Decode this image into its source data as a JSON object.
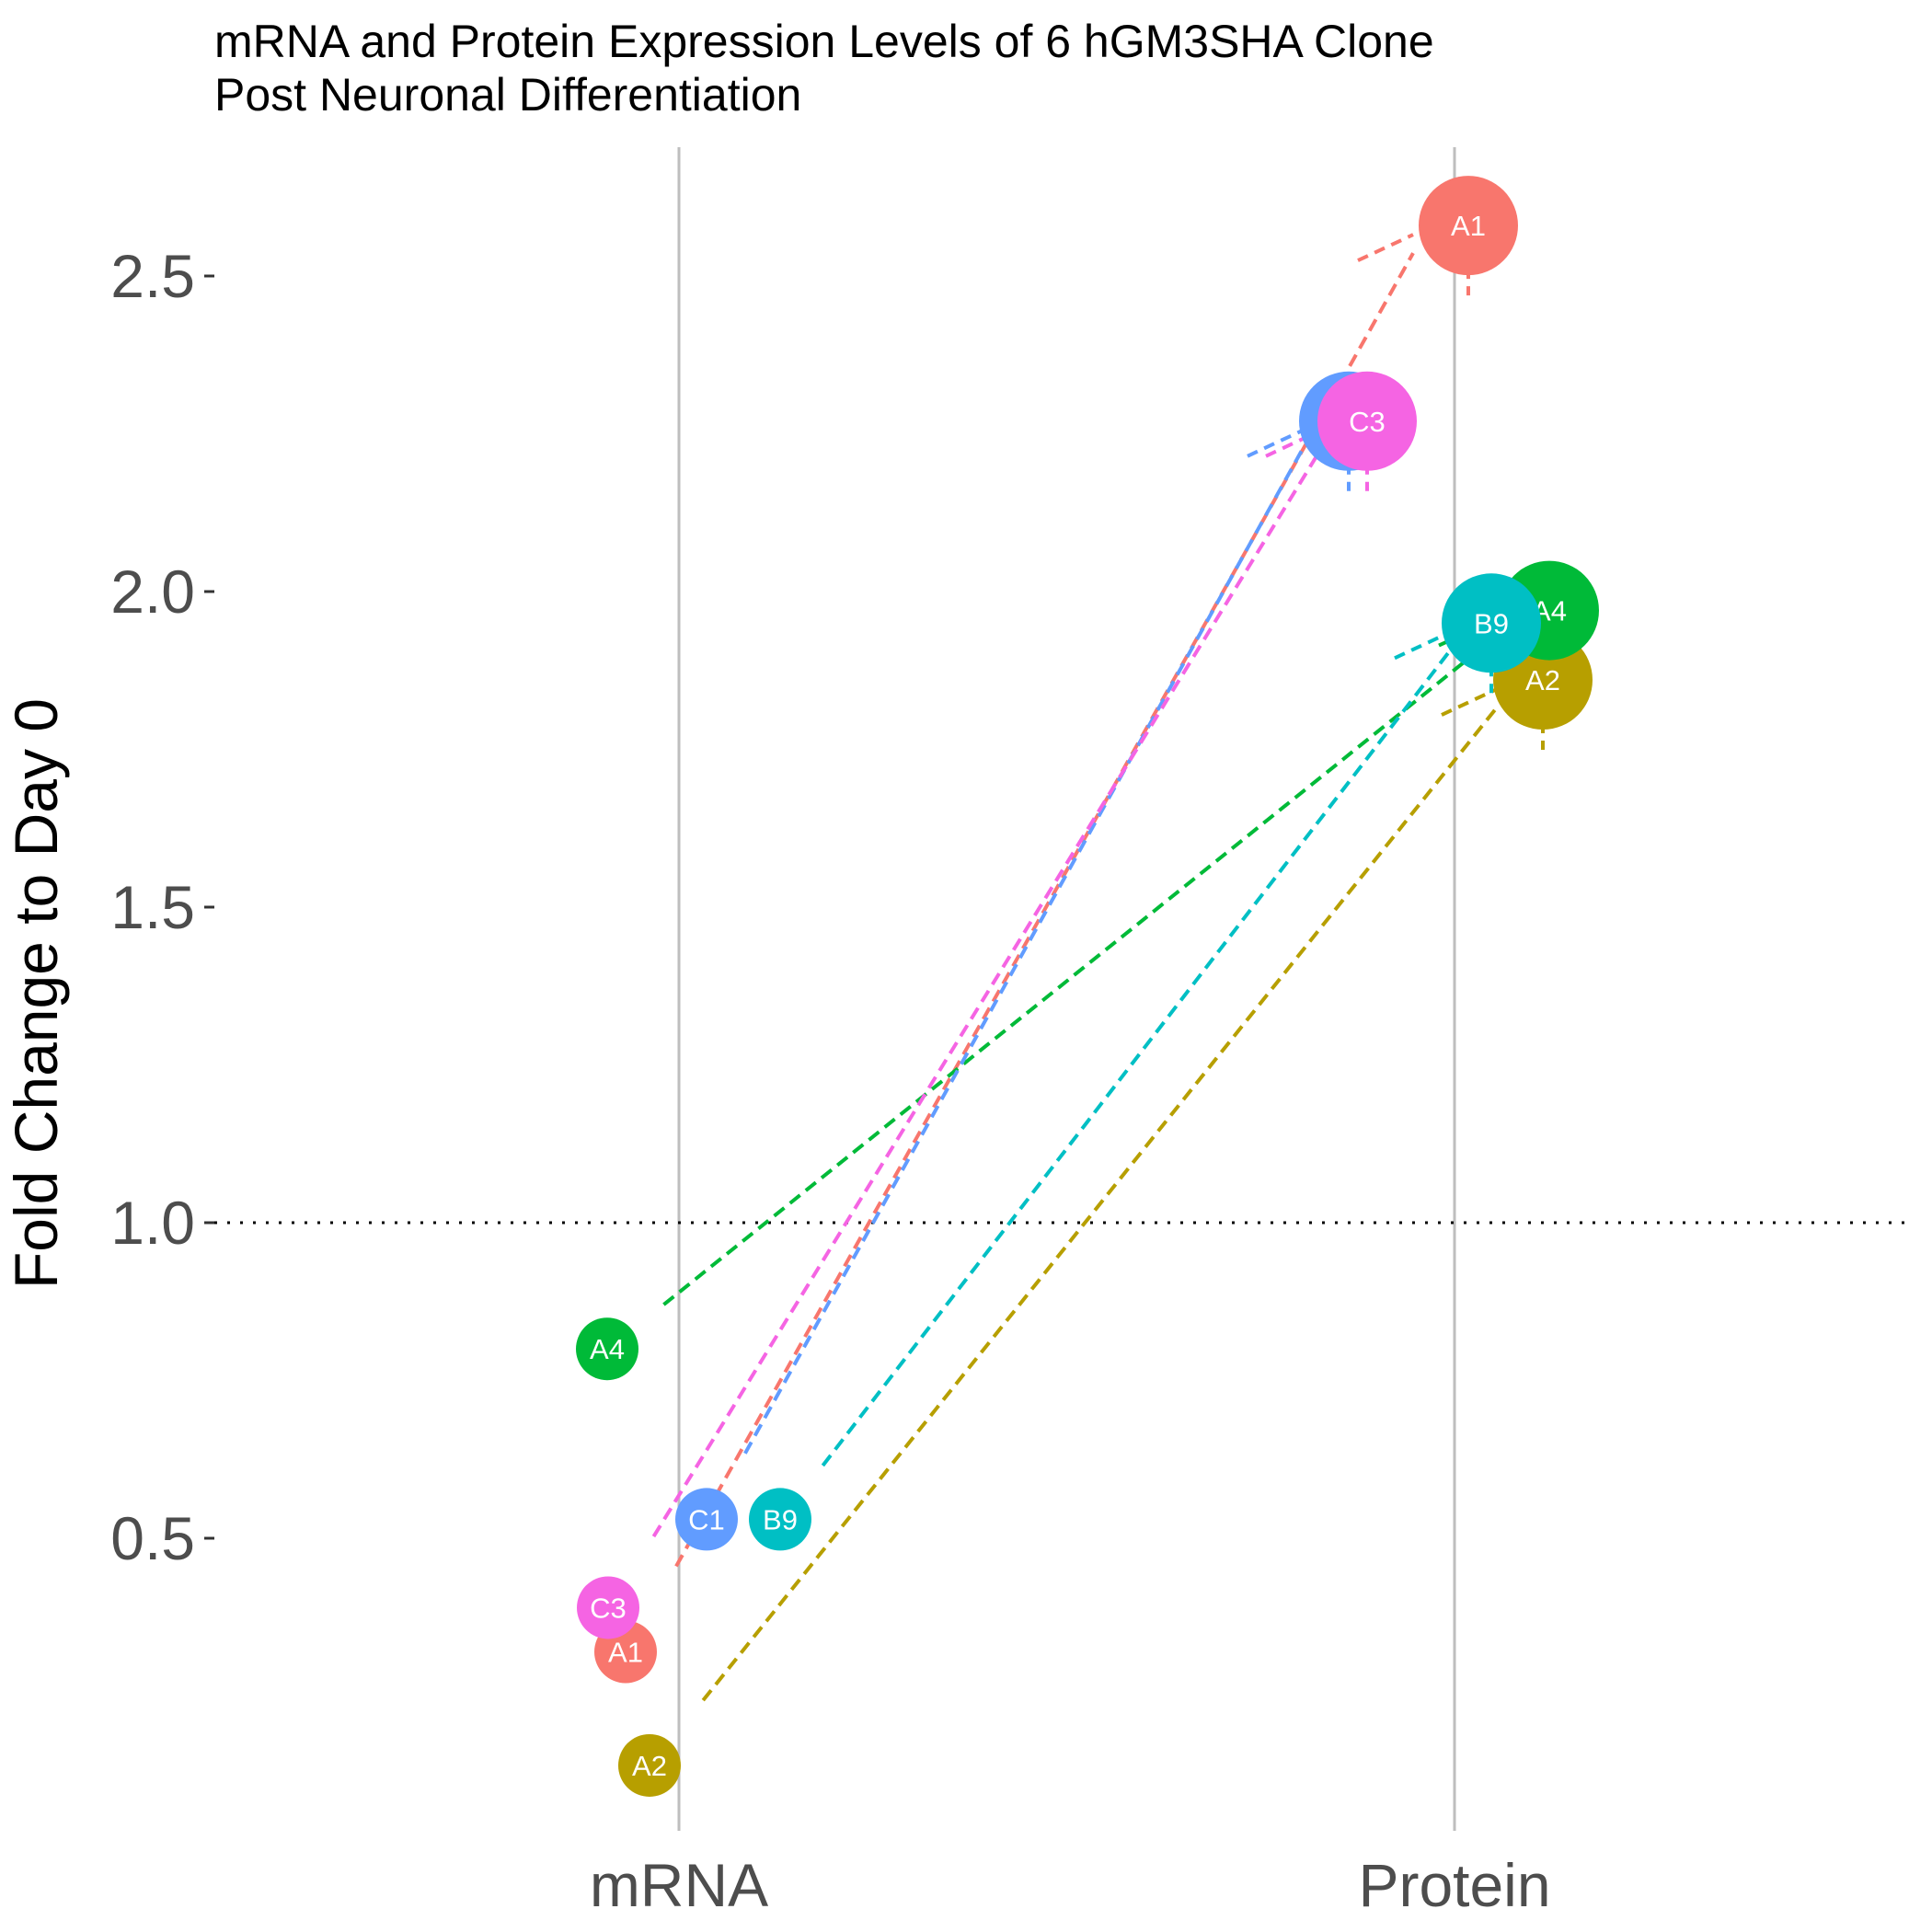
{
  "chart_data": {
    "type": "line",
    "title": "mRNA and Protein Expression Levels of 6 hGM3SHA Clone",
    "subtitle": "Post Neuronal Differentiation",
    "xlabel": "",
    "ylabel": "Fold Change to Day 0",
    "categories": [
      "mRNA",
      "Protein"
    ],
    "y_ticks": [
      "0.5",
      "1.0",
      "1.5",
      "2.0",
      "2.5"
    ],
    "ylim": [
      0.1,
      2.7
    ],
    "reference_line": 1.0,
    "grid": "vertical major lines at categories only",
    "legend": "none",
    "series": [
      {
        "name": "A1",
        "color": "#F8766D",
        "values": [
          0.32,
          2.58
        ]
      },
      {
        "name": "A2",
        "color": "#B79F00",
        "values": [
          0.14,
          1.86
        ]
      },
      {
        "name": "A4",
        "color": "#00BA38",
        "values": [
          0.8,
          1.97
        ]
      },
      {
        "name": "B9",
        "color": "#00BFC4",
        "values": [
          0.53,
          1.95
        ]
      },
      {
        "name": "C1",
        "color": "#619CFF",
        "values": [
          0.53,
          2.27
        ]
      },
      {
        "name": "C3",
        "color": "#F564E3",
        "values": [
          0.39,
          2.27
        ]
      }
    ]
  }
}
